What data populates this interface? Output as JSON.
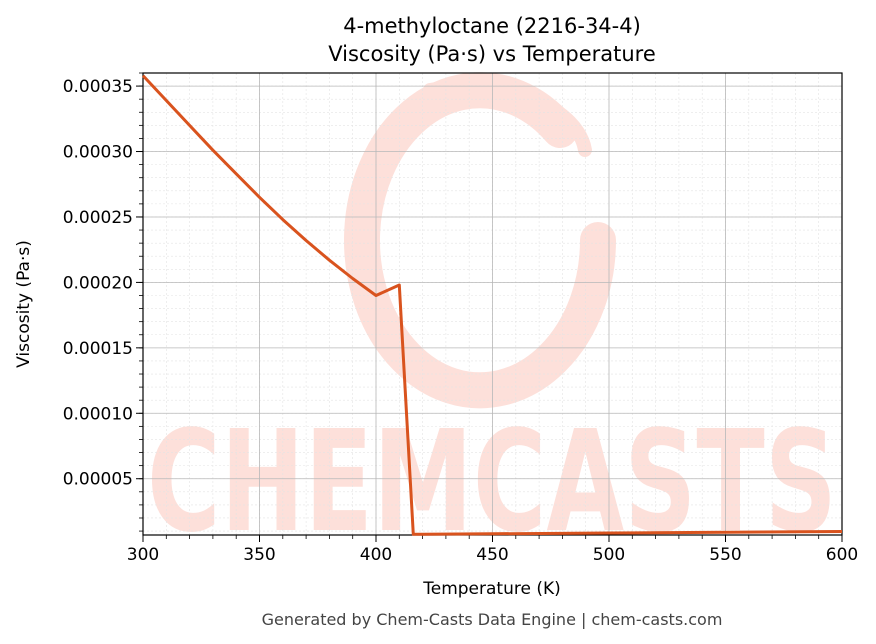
{
  "chart_data": {
    "type": "line",
    "title": "4-methyloctane (2216-34-4)",
    "subtitle": "Viscosity (Pa·s) vs Temperature",
    "xlabel": "Temperature (K)",
    "ylabel": "Viscosity (Pa·s)",
    "xlim": [
      300,
      600
    ],
    "ylim": [
      7e-06,
      0.00036
    ],
    "xticks": [
      300,
      350,
      400,
      450,
      500,
      550,
      600
    ],
    "xtick_labels": [
      "300",
      "350",
      "400",
      "450",
      "500",
      "550",
      "600"
    ],
    "yticks": [
      5e-05,
      0.0001,
      0.00015,
      0.0002,
      0.00025,
      0.0003,
      0.00035
    ],
    "ytick_labels": [
      "0.00005",
      "0.00010",
      "0.00015",
      "0.00020",
      "0.00025",
      "0.00030",
      "0.00035"
    ],
    "grid": true,
    "series": [
      {
        "color": "#d9531e",
        "x": [
          300,
          310,
          320,
          330,
          340,
          350,
          360,
          370,
          380,
          390,
          400,
          410,
          416,
          420,
          450,
          500,
          550,
          600
        ],
        "y": [
          0.000358,
          0.000339,
          0.00032,
          0.000301,
          0.000283,
          0.000265,
          0.000248,
          0.000232,
          0.000217,
          0.000203,
          0.00019,
          0.000198,
          7.5e-06,
          7.6e-06,
          7.9e-06,
          8.5e-06,
          9.1e-06,
          9.7e-06
        ]
      }
    ]
  },
  "watermark": {
    "text": "CHEMCASTS"
  },
  "footer": "Generated by Chem-Casts Data Engine | chem-casts.com"
}
